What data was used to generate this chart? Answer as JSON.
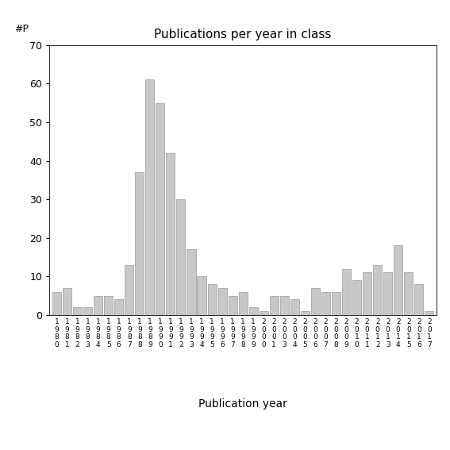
{
  "title": "Publications per year in class",
  "xlabel": "Publication year",
  "ylabel": "#P",
  "ylim": [
    0,
    70
  ],
  "yticks": [
    0,
    10,
    20,
    30,
    40,
    50,
    60,
    70
  ],
  "bar_color": "#c8c8c8",
  "bar_edgecolor": "#999999",
  "background_color": "#ffffff",
  "years": [
    "1980",
    "1981",
    "1982",
    "1983",
    "1984",
    "1985",
    "1986",
    "1987",
    "1988",
    "1989",
    "1990",
    "1991",
    "1992",
    "1993",
    "1994",
    "1995",
    "1996",
    "1997",
    "1998",
    "1999",
    "2000",
    "2001",
    "2003",
    "2004",
    "2005",
    "2006",
    "2007",
    "2008",
    "2009",
    "2010",
    "2011",
    "2012",
    "2013",
    "2014",
    "2015",
    "2016",
    "2017"
  ],
  "values": [
    6,
    7,
    2,
    2,
    5,
    5,
    4,
    13,
    37,
    61,
    55,
    42,
    30,
    17,
    10,
    8,
    7,
    5,
    6,
    2,
    1,
    5,
    5,
    4,
    1,
    7,
    6,
    6,
    12,
    9,
    11,
    13,
    11,
    18,
    11,
    8,
    1
  ],
  "figsize": [
    5.67,
    5.67
  ],
  "dpi": 100
}
